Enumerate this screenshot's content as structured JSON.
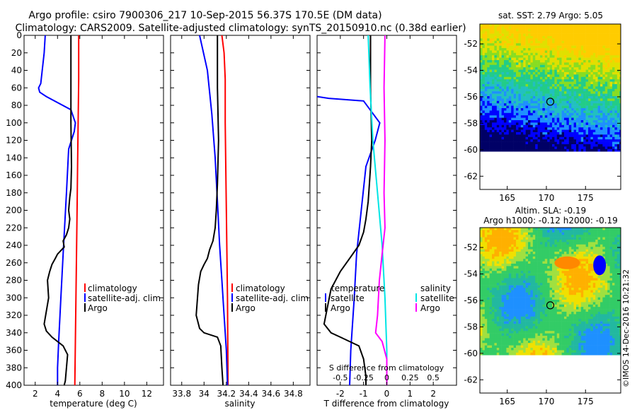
{
  "title_line1": "Argo profile: csiro 7900306_217 10-Sep-2015 56.37S 170.5E (DM data)",
  "title_line2": "Climatology: CARS2009. Satellite-adjusted climatology: synTS_20150910.nc (0.38d earlier)",
  "watermark": "©IMOS 14-Dec-2016 10:21:32",
  "colors": {
    "climatology": "#ff0000",
    "satellite": "#0000ff",
    "argo": "#000000",
    "cyan": "#00e5e5",
    "magenta": "#ff00ff"
  },
  "chart_data": [
    {
      "type": "line",
      "id": "temperature",
      "xlabel": "temperature (deg C)",
      "ylabel": "",
      "xlim": [
        1,
        13.5
      ],
      "ylim": [
        400,
        0
      ],
      "xticks": [
        "2",
        "4",
        "6",
        "8",
        "10",
        "12"
      ],
      "xtick_values": [
        2,
        4,
        6,
        8,
        10,
        12
      ],
      "yticks": [
        "0",
        "20",
        "40",
        "60",
        "80",
        "100",
        "120",
        "140",
        "160",
        "180",
        "200",
        "220",
        "240",
        "260",
        "280",
        "300",
        "320",
        "340",
        "360",
        "380",
        "400"
      ],
      "ytick_values": [
        0,
        20,
        40,
        60,
        80,
        100,
        120,
        140,
        160,
        180,
        200,
        220,
        240,
        260,
        280,
        300,
        320,
        340,
        360,
        380,
        400
      ],
      "legend": [
        {
          "label": "climatology",
          "color": "#ff0000"
        },
        {
          "label": "satellite-adj. clim.",
          "color": "#0000ff"
        },
        {
          "label": "Argo",
          "color": "#000000"
        }
      ],
      "series": [
        {
          "name": "climatology",
          "color": "#ff0000",
          "x": [
            5.9,
            5.9,
            5.85,
            5.8,
            5.75,
            5.7,
            5.65,
            5.6,
            5.55
          ],
          "y": [
            0,
            50,
            100,
            150,
            200,
            250,
            300,
            350,
            400
          ]
        },
        {
          "name": "satellite-adj. clim.",
          "color": "#0000ff",
          "x": [
            2.9,
            2.8,
            2.5,
            2.3,
            2.4,
            3.0,
            5.2,
            5.6,
            5.5,
            5.0,
            4.8,
            4.5,
            4.3,
            4.1,
            4.0,
            4.0
          ],
          "y": [
            0,
            20,
            55,
            60,
            65,
            70,
            85,
            100,
            110,
            130,
            180,
            250,
            300,
            350,
            380,
            400
          ]
        },
        {
          "name": "Argo",
          "color": "#000000",
          "x": [
            5.2,
            5.2,
            5.2,
            5.25,
            5.2,
            5.1,
            5.0,
            5.1,
            5.0,
            4.8,
            4.5,
            4.6,
            4.0,
            3.8,
            3.5,
            3.3,
            3.1,
            3.2,
            2.8,
            3.0,
            3.5,
            4.5,
            4.9,
            4.8,
            4.7,
            4.6
          ],
          "y": [
            0,
            50,
            100,
            150,
            175,
            185,
            200,
            210,
            220,
            228,
            235,
            242,
            250,
            255,
            262,
            270,
            280,
            300,
            330,
            338,
            345,
            355,
            365,
            380,
            395,
            400
          ]
        }
      ]
    },
    {
      "type": "line",
      "id": "salinity",
      "xlabel": "salinity",
      "ylabel": "",
      "xlim": [
        33.7,
        34.95
      ],
      "ylim": [
        400,
        0
      ],
      "xticks": [
        "33.8",
        "34",
        "34.2",
        "34.4",
        "34.6",
        "34.8"
      ],
      "xtick_values": [
        33.8,
        34.0,
        34.2,
        34.4,
        34.6,
        34.8
      ],
      "legend": [
        {
          "label": "climatology",
          "color": "#ff0000"
        },
        {
          "label": "satellite-adj. clim.",
          "color": "#0000ff"
        },
        {
          "label": "Argo",
          "color": "#000000"
        }
      ],
      "series": [
        {
          "name": "climatology",
          "color": "#ff0000",
          "x": [
            34.16,
            34.18,
            34.19,
            34.19,
            34.195,
            34.2,
            34.205,
            34.21,
            34.215
          ],
          "y": [
            0,
            20,
            50,
            100,
            150,
            200,
            250,
            300,
            400
          ]
        },
        {
          "name": "satellite-adj. clim.",
          "color": "#0000ff",
          "x": [
            33.96,
            34.03,
            34.07,
            34.1,
            34.12,
            34.14,
            34.16,
            34.18,
            34.2,
            34.21
          ],
          "y": [
            0,
            40,
            90,
            140,
            190,
            240,
            280,
            320,
            360,
            400
          ]
        },
        {
          "name": "Argo",
          "color": "#000000",
          "x": [
            34.12,
            34.12,
            34.13,
            34.12,
            34.11,
            34.1,
            34.08,
            34.05,
            34.03,
            34.0,
            33.97,
            33.95,
            33.93,
            33.96,
            34.0,
            34.12,
            34.15,
            34.16,
            34.17
          ],
          "y": [
            0,
            60,
            120,
            170,
            200,
            220,
            235,
            245,
            255,
            262,
            270,
            285,
            320,
            335,
            340,
            345,
            355,
            380,
            400
          ]
        }
      ]
    },
    {
      "type": "line",
      "id": "difference",
      "xlabel": "T difference from climatology",
      "top_axis_label": "S difference from climatology",
      "ylabel": "",
      "xlim": [
        -3,
        3
      ],
      "ylim": [
        400,
        0
      ],
      "xticks": [
        "-2",
        "-1",
        "0",
        "1",
        "2"
      ],
      "xtick_values": [
        -2,
        -1,
        0,
        1,
        2
      ],
      "sticks": [
        "-0.5",
        "-0.25",
        "0",
        "0.25",
        "0.5"
      ],
      "stick_values": [
        -0.5,
        -0.25,
        0,
        0.25,
        0.5
      ],
      "slim": [
        -0.75,
        0.75
      ],
      "legend_temperature_title": "temperature",
      "legend_salinity_title": "salinity",
      "legend": [
        {
          "label": "satellite",
          "color": "#0000ff",
          "group": "temperature"
        },
        {
          "label": "Argo",
          "color": "#000000",
          "group": "temperature"
        },
        {
          "label": "satellite",
          "color": "#00e5e5",
          "group": "salinity"
        },
        {
          "label": "Argo",
          "color": "#ff00ff",
          "group": "salinity"
        }
      ],
      "series": [
        {
          "name": "T satellite",
          "color": "#0000ff",
          "axis": "T",
          "x": [
            -3.0,
            -2.5,
            -1.0,
            -0.3,
            -0.5,
            -0.9,
            -1.1,
            -1.3,
            -1.4,
            -1.55,
            -1.6
          ],
          "y": [
            70,
            72,
            75,
            100,
            120,
            150,
            200,
            250,
            300,
            360,
            400
          ]
        },
        {
          "name": "T Argo",
          "color": "#000000",
          "axis": "T",
          "x": [
            -0.7,
            -0.7,
            -0.65,
            -0.7,
            -0.75,
            -0.8,
            -0.9,
            -1.0,
            -1.2,
            -1.6,
            -2.0,
            -2.4,
            -2.7,
            -2.4,
            -2.0,
            -1.2,
            -1.0,
            -0.9,
            -0.9
          ],
          "y": [
            0,
            60,
            120,
            150,
            170,
            190,
            210,
            225,
            240,
            255,
            270,
            290,
            330,
            340,
            345,
            355,
            370,
            390,
            400
          ]
        },
        {
          "name": "S satellite",
          "color": "#00e5e5",
          "axis": "S",
          "x": [
            -0.2,
            -0.18,
            -0.15,
            -0.1,
            -0.05,
            -0.02,
            0.0,
            0.0
          ],
          "y": [
            0,
            60,
            120,
            180,
            240,
            300,
            360,
            400
          ]
        },
        {
          "name": "S Argo",
          "color": "#ff00ff",
          "axis": "S",
          "x": [
            -0.02,
            -0.03,
            -0.02,
            -0.03,
            -0.02,
            -0.05,
            -0.08,
            -0.1,
            -0.12,
            -0.05,
            0.0,
            0.0
          ],
          "y": [
            0,
            60,
            120,
            180,
            220,
            250,
            280,
            320,
            340,
            350,
            370,
            400
          ]
        }
      ]
    },
    {
      "type": "heatmap",
      "id": "sst_map",
      "title": "sat. SST: 2.79 Argo: 5.05",
      "xlim": [
        161.5,
        179.5
      ],
      "ylim": [
        -63,
        -50.5
      ],
      "xticks": [
        "165",
        "170",
        "175"
      ],
      "xtick_values": [
        165,
        170,
        175
      ],
      "yticks": [
        "-52",
        "-54",
        "-56",
        "-58",
        "-60",
        "-62"
      ],
      "ytick_values": [
        -52,
        -54,
        -56,
        -58,
        -60,
        -62
      ],
      "marker": {
        "lon": 170.5,
        "lat": -56.37
      }
    },
    {
      "type": "heatmap",
      "id": "sla_map",
      "title_line1": "Altim. SLA: -0.19",
      "title_line2": "Argo h1000: -0.12 h2000: -0.19",
      "xlim": [
        161.5,
        179.5
      ],
      "ylim": [
        -63,
        -50.5
      ],
      "xticks": [
        "165",
        "170",
        "175"
      ],
      "xtick_values": [
        165,
        170,
        175
      ],
      "yticks": [
        "-52",
        "-54",
        "-56",
        "-58",
        "-60",
        "-62"
      ],
      "ytick_values": [
        -52,
        -54,
        -56,
        -58,
        -60,
        -62
      ],
      "marker": {
        "lon": 170.5,
        "lat": -56.37
      }
    }
  ]
}
